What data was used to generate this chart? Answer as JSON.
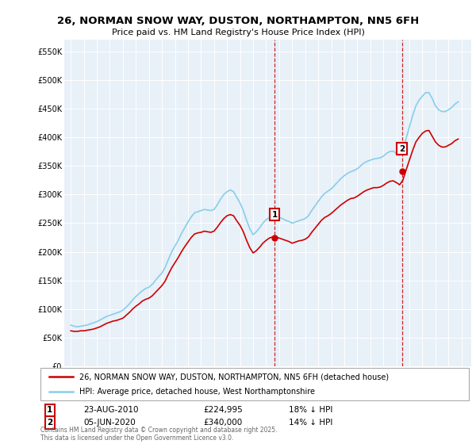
{
  "title_line1": "26, NORMAN SNOW WAY, DUSTON, NORTHAMPTON, NN5 6FH",
  "title_line2": "Price paid vs. HM Land Registry's House Price Index (HPI)",
  "ylabel_ticks": [
    "£0",
    "£50K",
    "£100K",
    "£150K",
    "£200K",
    "£250K",
    "£300K",
    "£350K",
    "£400K",
    "£450K",
    "£500K",
    "£550K"
  ],
  "ytick_values": [
    0,
    50000,
    100000,
    150000,
    200000,
    250000,
    300000,
    350000,
    400000,
    450000,
    500000,
    550000
  ],
  "xlim": [
    1994.5,
    2025.75
  ],
  "ylim": [
    0,
    570000
  ],
  "hpi_color": "#87CEEB",
  "price_color": "#CC0000",
  "plot_bg": "#E8F0F8",
  "grid_color": "#ffffff",
  "marker1_x": 2010.65,
  "marker1_y": 224995,
  "marker1_label": "1",
  "marker1_date": "23-AUG-2010",
  "marker1_price": "£224,995",
  "marker1_hpi": "18% ↓ HPI",
  "marker2_x": 2020.43,
  "marker2_y": 340000,
  "marker2_label": "2",
  "marker2_date": "05-JUN-2020",
  "marker2_price": "£340,000",
  "marker2_hpi": "14% ↓ HPI",
  "legend_label_price": "26, NORMAN SNOW WAY, DUSTON, NORTHAMPTON, NN5 6FH (detached house)",
  "legend_label_hpi": "HPI: Average price, detached house, West Northamptonshire",
  "footnote": "Contains HM Land Registry data © Crown copyright and database right 2025.\nThis data is licensed under the Open Government Licence v3.0.",
  "hpi_data": {
    "years": [
      1995.0,
      1995.25,
      1995.5,
      1995.75,
      1996.0,
      1996.25,
      1996.5,
      1996.75,
      1997.0,
      1997.25,
      1997.5,
      1997.75,
      1998.0,
      1998.25,
      1998.5,
      1998.75,
      1999.0,
      1999.25,
      1999.5,
      1999.75,
      2000.0,
      2000.25,
      2000.5,
      2000.75,
      2001.0,
      2001.25,
      2001.5,
      2001.75,
      2002.0,
      2002.25,
      2002.5,
      2002.75,
      2003.0,
      2003.25,
      2003.5,
      2003.75,
      2004.0,
      2004.25,
      2004.5,
      2004.75,
      2005.0,
      2005.25,
      2005.5,
      2005.75,
      2006.0,
      2006.25,
      2006.5,
      2006.75,
      2007.0,
      2007.25,
      2007.5,
      2007.75,
      2008.0,
      2008.25,
      2008.5,
      2008.75,
      2009.0,
      2009.25,
      2009.5,
      2009.75,
      2010.0,
      2010.25,
      2010.5,
      2010.75,
      2011.0,
      2011.25,
      2011.5,
      2011.75,
      2012.0,
      2012.25,
      2012.5,
      2012.75,
      2013.0,
      2013.25,
      2013.5,
      2013.75,
      2014.0,
      2014.25,
      2014.5,
      2014.75,
      2015.0,
      2015.25,
      2015.5,
      2015.75,
      2016.0,
      2016.25,
      2016.5,
      2016.75,
      2017.0,
      2017.25,
      2017.5,
      2017.75,
      2018.0,
      2018.25,
      2018.5,
      2018.75,
      2019.0,
      2019.25,
      2019.5,
      2019.75,
      2020.0,
      2020.25,
      2020.5,
      2020.75,
      2021.0,
      2021.25,
      2021.5,
      2021.75,
      2022.0,
      2022.25,
      2022.5,
      2022.75,
      2023.0,
      2023.25,
      2023.5,
      2023.75,
      2024.0,
      2024.25,
      2024.5,
      2024.75
    ],
    "values": [
      72000,
      70000,
      69000,
      70000,
      71000,
      72000,
      74000,
      76000,
      78000,
      81000,
      84000,
      87000,
      89000,
      91000,
      93000,
      95000,
      98000,
      103000,
      109000,
      116000,
      122000,
      127000,
      132000,
      136000,
      138000,
      143000,
      150000,
      157000,
      163000,
      173000,
      187000,
      200000,
      210000,
      220000,
      232000,
      242000,
      252000,
      261000,
      268000,
      270000,
      272000,
      274000,
      273000,
      272000,
      274000,
      282000,
      292000,
      300000,
      305000,
      308000,
      305000,
      295000,
      285000,
      272000,
      255000,
      240000,
      230000,
      235000,
      242000,
      250000,
      256000,
      260000,
      263000,
      262000,
      260000,
      258000,
      255000,
      253000,
      250000,
      252000,
      254000,
      256000,
      258000,
      263000,
      272000,
      280000,
      288000,
      296000,
      302000,
      306000,
      310000,
      316000,
      322000,
      328000,
      333000,
      337000,
      340000,
      342000,
      345000,
      350000,
      355000,
      358000,
      360000,
      362000,
      363000,
      364000,
      367000,
      372000,
      375000,
      376000,
      372000,
      368000,
      378000,
      398000,
      418000,
      438000,
      455000,
      465000,
      472000,
      478000,
      478000,
      468000,
      455000,
      448000,
      445000,
      445000,
      448000,
      452000,
      458000,
      462000
    ]
  },
  "price_data": {
    "years": [
      1995.0,
      1995.25,
      1995.5,
      1995.75,
      1996.0,
      1996.25,
      1996.5,
      1996.75,
      1997.0,
      1997.25,
      1997.5,
      1997.75,
      1998.0,
      1998.25,
      1998.5,
      1998.75,
      1999.0,
      1999.25,
      1999.5,
      1999.75,
      2000.0,
      2000.25,
      2000.5,
      2000.75,
      2001.0,
      2001.25,
      2001.5,
      2001.75,
      2002.0,
      2002.25,
      2002.5,
      2002.75,
      2003.0,
      2003.25,
      2003.5,
      2003.75,
      2004.0,
      2004.25,
      2004.5,
      2004.75,
      2005.0,
      2005.25,
      2005.5,
      2005.75,
      2006.0,
      2006.25,
      2006.5,
      2006.75,
      2007.0,
      2007.25,
      2007.5,
      2007.75,
      2008.0,
      2008.25,
      2008.5,
      2008.75,
      2009.0,
      2009.25,
      2009.5,
      2009.75,
      2010.0,
      2010.25,
      2010.5,
      2010.75,
      2011.0,
      2011.25,
      2011.5,
      2011.75,
      2012.0,
      2012.25,
      2012.5,
      2012.75,
      2013.0,
      2013.25,
      2013.5,
      2013.75,
      2014.0,
      2014.25,
      2014.5,
      2014.75,
      2015.0,
      2015.25,
      2015.5,
      2015.75,
      2016.0,
      2016.25,
      2016.5,
      2016.75,
      2017.0,
      2017.25,
      2017.5,
      2017.75,
      2018.0,
      2018.25,
      2018.5,
      2018.75,
      2019.0,
      2019.25,
      2019.5,
      2019.75,
      2020.0,
      2020.25,
      2020.5,
      2020.75,
      2021.0,
      2021.25,
      2021.5,
      2021.75,
      2022.0,
      2022.25,
      2022.5,
      2022.75,
      2023.0,
      2023.25,
      2023.5,
      2023.75,
      2024.0,
      2024.25,
      2024.5,
      2024.75
    ],
    "values": [
      62000,
      61000,
      61000,
      62000,
      62000,
      63000,
      64000,
      65000,
      67000,
      69000,
      72000,
      75000,
      77000,
      79000,
      80000,
      82000,
      84000,
      89000,
      94000,
      100000,
      105000,
      109000,
      114000,
      117000,
      119000,
      123000,
      129000,
      135000,
      141000,
      149000,
      161000,
      172000,
      181000,
      190000,
      200000,
      209000,
      217000,
      225000,
      231000,
      233000,
      234000,
      236000,
      235000,
      234000,
      236000,
      243000,
      251000,
      258000,
      263000,
      265000,
      263000,
      254000,
      246000,
      235000,
      220000,
      207000,
      198000,
      202000,
      208000,
      215000,
      220000,
      224000,
      226000,
      226000,
      224000,
      222000,
      220000,
      218000,
      215000,
      217000,
      219000,
      220000,
      222000,
      226000,
      234000,
      241000,
      248000,
      255000,
      260000,
      263000,
      267000,
      272000,
      277000,
      282000,
      286000,
      290000,
      293000,
      294000,
      297000,
      301000,
      305000,
      308000,
      310000,
      312000,
      312000,
      313000,
      316000,
      320000,
      323000,
      324000,
      321000,
      317000,
      325000,
      343000,
      360000,
      377000,
      392000,
      400000,
      407000,
      411000,
      412000,
      402000,
      392000,
      386000,
      383000,
      383000,
      386000,
      389000,
      394000,
      397000
    ]
  }
}
